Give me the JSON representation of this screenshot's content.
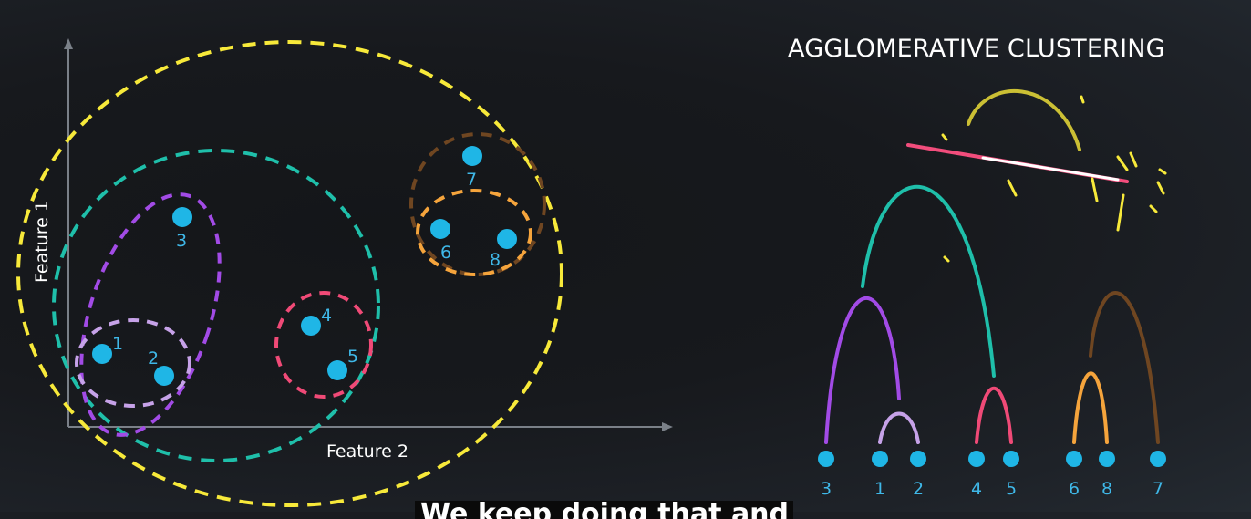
{
  "title": "AGGLOMERATIVE CLUSTERING",
  "scatter": {
    "y_axis_label": "Feature 1",
    "x_axis_label": "Feature 2",
    "points": [
      {
        "label": "1"
      },
      {
        "label": "2"
      },
      {
        "label": "3"
      },
      {
        "label": "4"
      },
      {
        "label": "5"
      },
      {
        "label": "6"
      },
      {
        "label": "7"
      },
      {
        "label": "8"
      }
    ]
  },
  "dendrogram": {
    "leaf_order": [
      "3",
      "1",
      "2",
      "4",
      "5",
      "6",
      "8",
      "7"
    ]
  },
  "colors": {
    "point": "#1fb6e6",
    "label": "#3fb8e8",
    "cluster_1_2": "#c6a2e8",
    "cluster_1_2_3": "#a24be6",
    "cluster_4_5": "#f04a77",
    "cluster_6_8": "#f5a43c",
    "cluster_6_8_7": "#6f4621",
    "cluster_1_to_5": "#1fbfaa",
    "cluster_all": "#f7e93a"
  },
  "caption": {
    "text": "We keep doing that and we"
  }
}
